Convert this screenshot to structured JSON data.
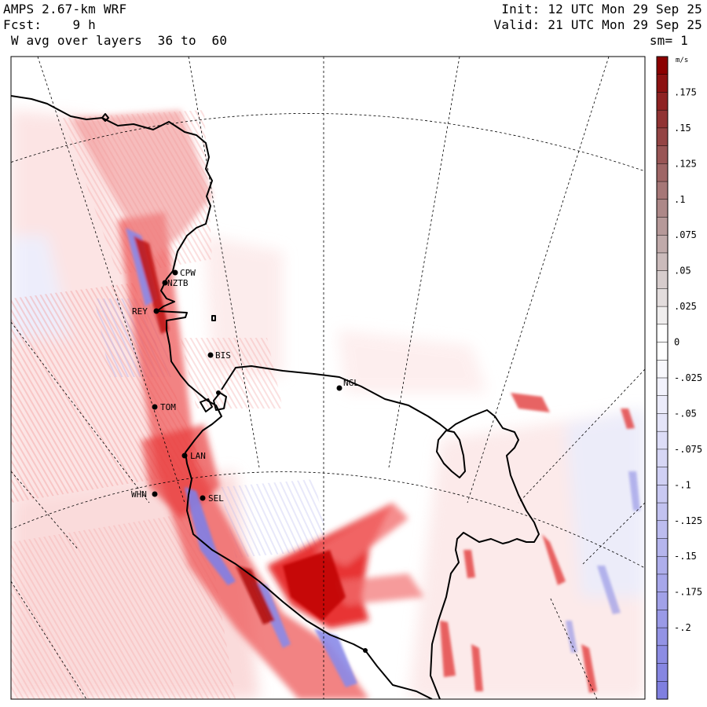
{
  "header": {
    "model": "AMPS 2.67-km WRF",
    "fcst": "Fcst:    9 h",
    "layer_avg": " W avg over layers  36 to  60",
    "init": "Init: 12 UTC Mon 29 Sep 25",
    "valid": "Valid: 21 UTC Mon 29 Sep 25",
    "smoothing": "sm= 1"
  },
  "colorbar": {
    "unit": "m/s",
    "tick_labels": [
      ".175",
      ".15",
      ".125",
      ".1",
      ".075",
      ".05",
      ".025",
      "0",
      "-.025",
      "-.05",
      "-.075",
      "-.1",
      "-.125",
      "-.15",
      "-.175",
      "-.2"
    ],
    "positive_color": "#8b0000",
    "zero_color": "#ffffff",
    "negative_color": "#7f7fe0"
  },
  "stations": [
    {
      "id": "CPW"
    },
    {
      "id": "NZTB"
    },
    {
      "id": "REY"
    },
    {
      "id": "BIS"
    },
    {
      "id": "NGL"
    },
    {
      "id": "TOM"
    },
    {
      "id": "LAN"
    },
    {
      "id": "WHN"
    },
    {
      "id": "SEL"
    }
  ]
}
